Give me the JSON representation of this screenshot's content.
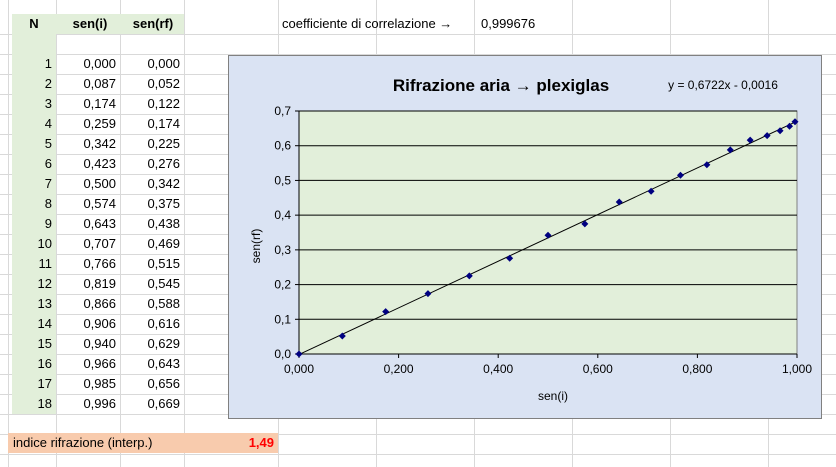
{
  "sheet": {
    "headers": {
      "n": "N",
      "seni": "sen(i)",
      "senrf": "sen(rf)"
    },
    "rows": [
      [
        "1",
        "0,000",
        "0,000"
      ],
      [
        "2",
        "0,087",
        "0,052"
      ],
      [
        "3",
        "0,174",
        "0,122"
      ],
      [
        "4",
        "0,259",
        "0,174"
      ],
      [
        "5",
        "0,342",
        "0,225"
      ],
      [
        "6",
        "0,423",
        "0,276"
      ],
      [
        "7",
        "0,500",
        "0,342"
      ],
      [
        "8",
        "0,574",
        "0,375"
      ],
      [
        "9",
        "0,643",
        "0,438"
      ],
      [
        "10",
        "0,707",
        "0,469"
      ],
      [
        "11",
        "0,766",
        "0,515"
      ],
      [
        "12",
        "0,819",
        "0,545"
      ],
      [
        "13",
        "0,866",
        "0,588"
      ],
      [
        "14",
        "0,906",
        "0,616"
      ],
      [
        "15",
        "0,940",
        "0,629"
      ],
      [
        "16",
        "0,966",
        "0,643"
      ],
      [
        "17",
        "0,985",
        "0,656"
      ],
      [
        "18",
        "0,996",
        "0,669"
      ]
    ],
    "correlation_label": "coefficiente di correlazione →",
    "correlation_value": "0,999676",
    "index_label": "indice rifrazione (interp.)",
    "index_value": "1,49"
  },
  "colors": {
    "header_green": "#e2efda",
    "peach": "#f8cbad",
    "index_red": "#ff0000",
    "chart_bg": "#dae3f3",
    "plot_bg": "#e2efda",
    "marker": "#000080"
  },
  "chart_data": {
    "type": "scatter",
    "title": "Rifrazione aria → plexiglas",
    "equation": "y = 0,6722x - 0,0016",
    "xlabel": "sen(i)",
    "ylabel": "sen(rf)",
    "xlim": [
      0,
      1
    ],
    "ylim": [
      0,
      0.7
    ],
    "xticks": [
      "0,000",
      "0,200",
      "0,400",
      "0,600",
      "0,800",
      "1,000"
    ],
    "yticks": [
      "0,0",
      "0,1",
      "0,2",
      "0,3",
      "0,4",
      "0,5",
      "0,6",
      "0,7"
    ],
    "grid": "horizontal",
    "trendline": {
      "slope": 0.6722,
      "intercept": -0.0016
    },
    "x": [
      0.0,
      0.087,
      0.174,
      0.259,
      0.342,
      0.423,
      0.5,
      0.574,
      0.643,
      0.707,
      0.766,
      0.819,
      0.866,
      0.906,
      0.94,
      0.966,
      0.985,
      0.996
    ],
    "y": [
      0.0,
      0.052,
      0.122,
      0.174,
      0.225,
      0.276,
      0.342,
      0.375,
      0.438,
      0.469,
      0.515,
      0.545,
      0.588,
      0.616,
      0.629,
      0.643,
      0.656,
      0.669
    ]
  }
}
